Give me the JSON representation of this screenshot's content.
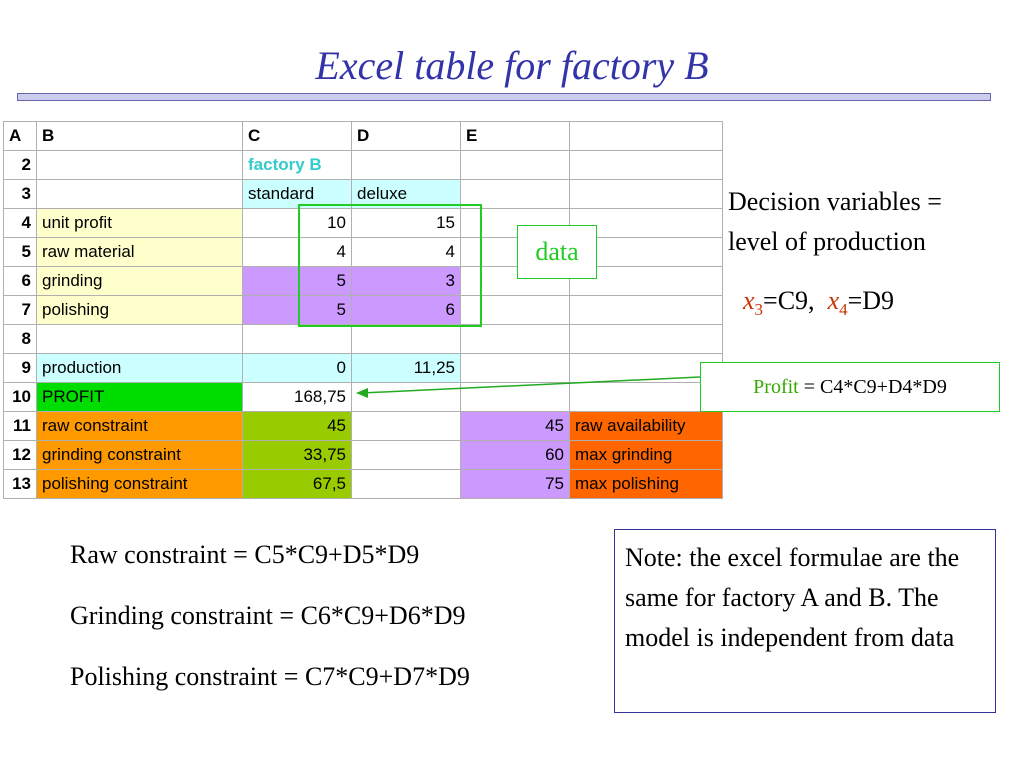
{
  "title": "Excel table for factory B",
  "sheet": {
    "col_headers": [
      "A",
      "B",
      "C",
      "D",
      "E",
      ""
    ],
    "rows": [
      {
        "num": "2",
        "label": "",
        "c": "factory B",
        "d": "",
        "e": "",
        "f": ""
      },
      {
        "num": "3",
        "label": "",
        "c": "standard",
        "d": "deluxe",
        "e": "",
        "f": ""
      },
      {
        "num": "4",
        "label": "unit profit",
        "c": "10",
        "d": "15",
        "e": "",
        "f": ""
      },
      {
        "num": "5",
        "label": "raw material",
        "c": "4",
        "d": "4",
        "e": "",
        "f": ""
      },
      {
        "num": "6",
        "label": "grinding",
        "c": "5",
        "d": "3",
        "e": "",
        "f": ""
      },
      {
        "num": "7",
        "label": "polishing",
        "c": "5",
        "d": "6",
        "e": "",
        "f": ""
      },
      {
        "num": "8",
        "label": "",
        "c": "",
        "d": "",
        "e": "",
        "f": ""
      },
      {
        "num": "9",
        "label": "production",
        "c": "0",
        "d": "11,25",
        "e": "",
        "f": ""
      },
      {
        "num": "10",
        "label": "PROFIT",
        "c": "168,75",
        "d": "",
        "e": "",
        "f": ""
      },
      {
        "num": "11",
        "label": "raw constraint",
        "c": "45",
        "d": "",
        "e": "45",
        "f": "raw availability"
      },
      {
        "num": "12",
        "label": "grinding constraint",
        "c": "33,75",
        "d": "",
        "e": "60",
        "f": "max grinding"
      },
      {
        "num": "13",
        "label": "polishing constraint",
        "c": "67,5",
        "d": "",
        "e": "75",
        "f": "max polishing"
      }
    ]
  },
  "data_label": "data",
  "decision": {
    "line1": "Decision variables =",
    "line2": "level of production",
    "x3_sym": "x",
    "x3_sub": "3",
    "x3_eq": "=C9,",
    "x4_sym": "x",
    "x4_sub": "4",
    "x4_eq": "=D9"
  },
  "profit_formula": {
    "word": "Profit",
    "rest": " = C4*C9+D4*D9"
  },
  "constraints": {
    "raw": "Raw constraint = C5*C9+D5*D9",
    "grinding": "Grinding constraint = C6*C9+D6*D9",
    "polishing": "Polishing constraint = C7*C9+D7*D9"
  },
  "note": "Note: the excel formulae are the same for factory A and B. The model is independent from data",
  "colors": {
    "title": "#3333aa",
    "data_box": "#22cc22",
    "profit_cell": "#00dd00",
    "constraint_labels": "#ff9900",
    "constraint_values": "#99cc00",
    "availability_values": "#cc99ff",
    "availability_labels": "#ff6600"
  }
}
